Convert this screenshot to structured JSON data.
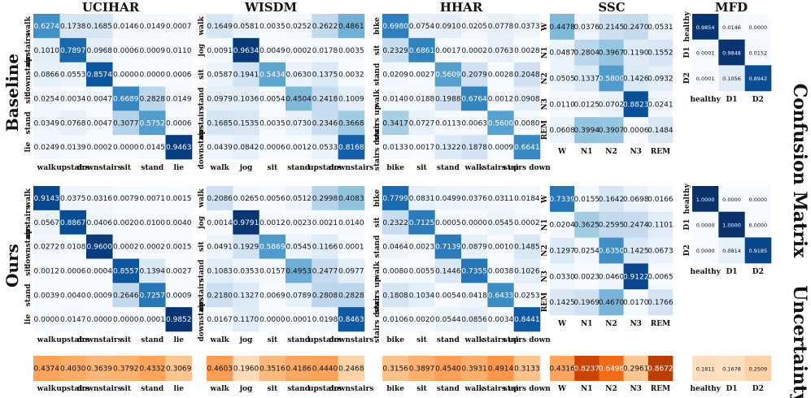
{
  "chart_data": [
    {
      "type": "heatmap",
      "title": "UCIHAR",
      "row_group": "Baseline",
      "labels": [
        "walk",
        "upstairs",
        "downstairs",
        "sit",
        "stand",
        "lie"
      ],
      "values": [
        [
          0.6274,
          0.1738,
          0.1685,
          0.0146,
          0.0149,
          0.0007
        ],
        [
          0.101,
          0.7897,
          0.0968,
          0.0006,
          0.0009,
          0.011
        ],
        [
          0.0866,
          0.0553,
          0.8574,
          0.0,
          0.0,
          0.0006
        ],
        [
          0.0254,
          0.0034,
          0.0047,
          0.6689,
          0.2828,
          0.0149
        ],
        [
          0.0349,
          0.0768,
          0.0047,
          0.3077,
          0.5752,
          0.0006
        ],
        [
          0.0249,
          0.0139,
          0.0002,
          0.0,
          0.0145,
          0.9463
        ]
      ],
      "display_values": [
        [
          "0.6274",
          "0.1738",
          "0.1685",
          "0.0146",
          "0.0149",
          "0.0007"
        ],
        [
          "0.1010",
          "0.7897",
          "0.0968",
          "0.0006",
          "0.0009",
          "0.0110"
        ],
        [
          "0.0866",
          "0.0553",
          "0.8574",
          "0.0000",
          "0.0000",
          "0.0006"
        ],
        [
          "0.0254",
          "0.0034",
          "0.0047",
          "0.6689",
          "0.2828",
          "0.0149"
        ],
        [
          "0.0349",
          "0.0768",
          "0.0047",
          "0.3077",
          "0.5752",
          "0.0006"
        ],
        [
          "0.0249",
          "0.0139",
          "0.0002",
          "0.0000",
          "0.0145",
          "0.9463"
        ]
      ]
    },
    {
      "type": "heatmap",
      "title": "WISDM",
      "row_group": "Baseline",
      "labels": [
        "walk",
        "jog",
        "sit",
        "stand",
        "upstairs",
        "downstairs"
      ],
      "values": [
        [
          0.1649,
          0.0581,
          0.0035,
          0.0252,
          0.2622,
          0.4861
        ],
        [
          0.0091,
          0.9634,
          0.0049,
          0.0002,
          0.0178,
          0.0035
        ],
        [
          0.0587,
          0.1941,
          0.5434,
          0.063,
          0.1375,
          0.0032
        ],
        [
          0.0979,
          0.1036,
          0.0054,
          0.4504,
          0.2418,
          0.1009
        ],
        [
          0.1685,
          0.1535,
          0.0035,
          0.073,
          0.2346,
          0.3668
        ],
        [
          0.0439,
          0.0842,
          0.0006,
          0.0012,
          0.0533,
          0.8168
        ]
      ],
      "display_values": [
        [
          "0.1649",
          "0.0581",
          "0.0035",
          "0.0252",
          "0.2622",
          "0.4861"
        ],
        [
          "0.0091",
          "0.9634",
          "0.0049",
          "0.0002",
          "0.0178",
          "0.0035"
        ],
        [
          "0.0587",
          "0.1941",
          "0.5434",
          "0.0630",
          "0.1375",
          "0.0032"
        ],
        [
          "0.0979",
          "0.1036",
          "0.0054",
          "0.4504",
          "0.2418",
          "0.1009"
        ],
        [
          "0.1685",
          "0.1535",
          "0.0035",
          "0.0730",
          "0.2346",
          "0.3668"
        ],
        [
          "0.0439",
          "0.0842",
          "0.0006",
          "0.0012",
          "0.0533",
          "0.8168"
        ]
      ]
    },
    {
      "type": "heatmap",
      "title": "HHAR",
      "row_group": "Baseline",
      "labels": [
        "bike",
        "sit",
        "stand",
        "walk",
        "stairs up",
        "stairs down"
      ],
      "values": [
        [
          0.698,
          0.0754,
          0.091,
          0.0205,
          0.0778,
          0.0373
        ],
        [
          0.2329,
          0.6861,
          0.0017,
          0.0002,
          0.0763,
          0.0028
        ],
        [
          0.0209,
          0.0027,
          0.5609,
          0.2079,
          0.0028,
          0.2048
        ],
        [
          0.014,
          0.0188,
          0.1988,
          0.6764,
          0.0012,
          0.0908
        ],
        [
          0.3417,
          0.0727,
          0.0113,
          0.0063,
          0.56,
          0.008
        ],
        [
          0.0133,
          0.0017,
          0.1322,
          0.1878,
          0.0009,
          0.6641
        ]
      ],
      "display_values": [
        [
          "0.6980",
          "0.0754",
          "0.0910",
          "0.0205",
          "0.0778",
          "0.0373"
        ],
        [
          "0.2329",
          "0.6861",
          "0.0017",
          "0.0002",
          "0.0763",
          "0.0028"
        ],
        [
          "0.0209",
          "0.0027",
          "0.5609",
          "0.2079",
          "0.0028",
          "0.2048"
        ],
        [
          "0.0140",
          "0.0188",
          "0.1988",
          "0.6764",
          "0.0012",
          "0.0908"
        ],
        [
          "0.3417",
          "0.0727",
          "0.0113",
          "0.0063",
          "0.5600",
          "0.0080"
        ],
        [
          "0.0133",
          "0.0017",
          "0.1322",
          "0.1878",
          "0.0009",
          "0.6641"
        ]
      ]
    },
    {
      "type": "heatmap",
      "title": "SSC",
      "row_group": "Baseline",
      "labels": [
        "W",
        "N1",
        "N2",
        "N3",
        "REM"
      ],
      "values": [
        [
          0.4478,
          0.0376,
          0.2145,
          0.247,
          0.0531
        ],
        [
          0.0487,
          0.2804,
          0.3967,
          0.119,
          0.1552
        ],
        [
          0.0505,
          0.1337,
          0.58,
          0.1426,
          0.0932
        ],
        [
          0.011,
          0.0125,
          0.0702,
          0.8823,
          0.0241
        ],
        [
          0.0608,
          0.3994,
          0.3907,
          0.0006,
          0.1484
        ]
      ],
      "display_values": [
        [
          "0.4478",
          "0.0376",
          "0.2145",
          "0.2470",
          "0.0531"
        ],
        [
          "0.0487",
          "0.2804",
          "0.3967",
          "0.1190",
          "0.1552"
        ],
        [
          "0.0505",
          "0.1337",
          "0.5800",
          "0.1426",
          "0.0932"
        ],
        [
          "0.0110",
          "0.0125",
          "0.0702",
          "0.8823",
          "0.0241"
        ],
        [
          "0.0608",
          "0.3994",
          "0.3907",
          "0.0006",
          "0.1484"
        ]
      ]
    },
    {
      "type": "heatmap",
      "title": "MFD",
      "row_group": "Baseline",
      "labels": [
        "healthy",
        "D1",
        "D2"
      ],
      "values": [
        [
          0.9854,
          0.0146,
          0.0
        ],
        [
          0.0001,
          0.9848,
          0.0152
        ],
        [
          0.0001,
          0.1056,
          0.8942
        ]
      ],
      "display_values": [
        [
          "0.9854",
          "0.0146",
          "0.0000"
        ],
        [
          "0.0001",
          "0.9848",
          "0.0152"
        ],
        [
          "0.0001",
          "0.1056",
          "0.8942"
        ]
      ]
    },
    {
      "type": "heatmap",
      "title": "UCIHAR",
      "row_group": "Ours",
      "labels": [
        "walk",
        "upstairs",
        "downstairs",
        "sit",
        "stand",
        "lie"
      ],
      "values": [
        [
          0.9143,
          0.0375,
          0.0316,
          0.0079,
          0.0071,
          0.0015
        ],
        [
          0.0567,
          0.8867,
          0.0406,
          0.002,
          0.01,
          0.004
        ],
        [
          0.0272,
          0.0108,
          0.96,
          0.0002,
          0.0002,
          0.0015
        ],
        [
          0.0012,
          0.0006,
          0.0004,
          0.8557,
          0.1394,
          0.0027
        ],
        [
          0.0039,
          0.004,
          0.0009,
          0.2646,
          0.7257,
          0.0009
        ],
        [
          0.0,
          0.0147,
          0.0,
          0.0,
          0.0001,
          0.9852
        ]
      ],
      "display_values": [
        [
          "0.9143",
          "0.0375",
          "0.0316",
          "0.0079",
          "0.0071",
          "0.0015"
        ],
        [
          "0.0567",
          "0.8867",
          "0.0406",
          "0.0020",
          "0.0100",
          "0.0040"
        ],
        [
          "0.0272",
          "0.0108",
          "0.9600",
          "0.0002",
          "0.0002",
          "0.0015"
        ],
        [
          "0.0012",
          "0.0006",
          "0.0004",
          "0.8557",
          "0.1394",
          "0.0027"
        ],
        [
          "0.0039",
          "0.0040",
          "0.0009",
          "0.2646",
          "0.7257",
          "0.0009"
        ],
        [
          "0.0000",
          "0.0147",
          "0.0000",
          "0.0000",
          "0.0001",
          "0.9852"
        ]
      ]
    },
    {
      "type": "heatmap",
      "title": "WISDM",
      "row_group": "Ours",
      "labels": [
        "walk",
        "jog",
        "sit",
        "stand",
        "upstairs",
        "downstairs"
      ],
      "values": [
        [
          0.2086,
          0.0265,
          0.0056,
          0.0512,
          0.2998,
          0.4083
        ],
        [
          0.0014,
          0.9791,
          0.0012,
          0.0023,
          0.0021,
          0.014
        ],
        [
          0.0491,
          0.1929,
          0.5869,
          0.0545,
          0.1166,
          0.0001
        ],
        [
          0.1083,
          0.0353,
          0.0157,
          0.4953,
          0.2477,
          0.0977
        ],
        [
          0.218,
          0.1327,
          0.0069,
          0.0789,
          0.2808,
          0.2828
        ],
        [
          0.0167,
          0.117,
          0.0,
          0.0001,
          0.0198,
          0.8463
        ]
      ],
      "display_values": [
        [
          "0.2086",
          "0.0265",
          "0.0056",
          "0.0512",
          "0.2998",
          "0.4083"
        ],
        [
          "0.0014",
          "0.9791",
          "0.0012",
          "0.0023",
          "0.0021",
          "0.0140"
        ],
        [
          "0.0491",
          "0.1929",
          "0.5869",
          "0.0545",
          "0.1166",
          "0.0001"
        ],
        [
          "0.1083",
          "0.0353",
          "0.0157",
          "0.4953",
          "0.2477",
          "0.0977"
        ],
        [
          "0.2180",
          "0.1327",
          "0.0069",
          "0.0789",
          "0.2808",
          "0.2828"
        ],
        [
          "0.0167",
          "0.1170",
          "0.0000",
          "0.0001",
          "0.0198",
          "0.8463"
        ]
      ]
    },
    {
      "type": "heatmap",
      "title": "HHAR",
      "row_group": "Ours",
      "labels": [
        "bike",
        "sit",
        "stand",
        "walk",
        "stairs up",
        "stairs down"
      ],
      "values": [
        [
          0.7799,
          0.0831,
          0.0499,
          0.0376,
          0.0311,
          0.0184
        ],
        [
          0.2322,
          0.7125,
          0.0005,
          0.0,
          0.0545,
          0.0002
        ],
        [
          0.0464,
          0.0023,
          0.7139,
          0.0879,
          0.001,
          0.1485
        ],
        [
          0.008,
          0.0055,
          0.1446,
          0.7355,
          0.0038,
          0.1026
        ],
        [
          0.1808,
          0.1034,
          0.0054,
          0.0418,
          0.6433,
          0.0253
        ],
        [
          0.0106,
          0.002,
          0.0544,
          0.0856,
          0.0034,
          0.8441
        ]
      ],
      "display_values": [
        [
          "0.7799",
          "0.0831",
          "0.0499",
          "0.0376",
          "0.0311",
          "0.0184"
        ],
        [
          "0.2322",
          "0.7125",
          "0.0005",
          "0.0000",
          "0.0545",
          "0.0002"
        ],
        [
          "0.0464",
          "0.0023",
          "0.7139",
          "0.0879",
          "0.0010",
          "0.1485"
        ],
        [
          "0.0080",
          "0.0055",
          "0.1446",
          "0.7355",
          "0.0038",
          "0.1026"
        ],
        [
          "0.1808",
          "0.1034",
          "0.0054",
          "0.0418",
          "0.6433",
          "0.0253"
        ],
        [
          "0.0106",
          "0.0020",
          "0.0544",
          "0.0856",
          "0.0034",
          "0.8441"
        ]
      ]
    },
    {
      "type": "heatmap",
      "title": "SSC",
      "row_group": "Ours",
      "labels": [
        "W",
        "N1",
        "N2",
        "N3",
        "REM"
      ],
      "values": [
        [
          0.7339,
          0.0155,
          0.1642,
          0.0698,
          0.0166
        ],
        [
          0.0204,
          0.3625,
          0.2595,
          0.2474,
          0.1101
        ],
        [
          0.1297,
          0.0254,
          0.635,
          0.1425,
          0.0673
        ],
        [
          0.033,
          0.0023,
          0.046,
          0.9122,
          0.0065
        ],
        [
          0.1425,
          0.1969,
          0.467,
          0.017,
          0.1766
        ]
      ],
      "display_values": [
        [
          "0.7339",
          "0.0155",
          "0.1642",
          "0.0698",
          "0.0166"
        ],
        [
          "0.0204",
          "0.3625",
          "0.2595",
          "0.2474",
          "0.1101"
        ],
        [
          "0.1297",
          "0.0254",
          "0.6350",
          "0.1425",
          "0.0673"
        ],
        [
          "0.0330",
          "0.0023",
          "0.0460",
          "0.9122",
          "0.0065"
        ],
        [
          "0.1425",
          "0.1969",
          "0.4670",
          "0.0170",
          "0.1766"
        ]
      ]
    },
    {
      "type": "heatmap",
      "title": "MFD",
      "row_group": "Ours",
      "labels": [
        "healthy",
        "D1",
        "D2"
      ],
      "values": [
        [
          1.0,
          0.0,
          0.0
        ],
        [
          0.0,
          1.0,
          0.0
        ],
        [
          0.0,
          0.0814,
          0.9185
        ]
      ],
      "display_values": [
        [
          "1.0000",
          "0.0000",
          "0.0000"
        ],
        [
          "0.0000",
          "1.0000",
          "0.0000"
        ],
        [
          "0.0000",
          "0.0814",
          "0.9185"
        ]
      ]
    },
    {
      "type": "heatmap",
      "title": "Uncertainty",
      "row_group": "Ours",
      "panels": [
        {
          "dataset": "UCIHAR",
          "labels": [
            "walk",
            "upstairs",
            "downstairs",
            "sit",
            "stand",
            "lie"
          ],
          "values": [
            0.4374,
            0.403,
            0.3639,
            0.3792,
            0.4332,
            0.3069
          ],
          "display_values": [
            "0.4374",
            "0.4030",
            "0.3639",
            "0.3792",
            "0.4332",
            "0.3069"
          ]
        },
        {
          "dataset": "WISDM",
          "labels": [
            "walk",
            "jog",
            "sit",
            "stand",
            "upstairs",
            "downstairs"
          ],
          "values": [
            0.4603,
            0.196,
            0.3516,
            0.4186,
            0.444,
            0.2468
          ],
          "display_values": [
            "0.4603",
            "0.1960",
            "0.3516",
            "0.4186",
            "0.4440",
            "0.2468"
          ]
        },
        {
          "dataset": "HHAR",
          "labels": [
            "bike",
            "sit",
            "stand",
            "walk",
            "stairs up",
            "stairs down"
          ],
          "values": [
            0.3156,
            0.3897,
            0.454,
            0.3931,
            0.4914,
            0.3133
          ],
          "display_values": [
            "0.3156",
            "0.3897",
            "0.4540",
            "0.3931",
            "0.4914",
            "0.3133"
          ]
        },
        {
          "dataset": "SSC",
          "labels": [
            "W",
            "N1",
            "N2",
            "N3",
            "REM"
          ],
          "values": [
            0.4316,
            0.8237,
            0.6498,
            0.2961,
            0.8672
          ],
          "display_values": [
            "0.4316",
            "0.8237",
            "0.6498",
            "0.2961",
            "0.8672"
          ]
        },
        {
          "dataset": "MFD",
          "labels": [
            "healthy",
            "D1",
            "D2"
          ],
          "values": [
            0.1811,
            0.1678,
            0.2509
          ],
          "display_values": [
            "0.1811",
            "0.1678",
            "0.2509"
          ]
        }
      ]
    }
  ],
  "labels": {
    "row_baseline": "Baseline",
    "row_ours": "Ours",
    "side_confusion": "Confusion Matrix",
    "side_uncertainty": "Uncertainty"
  },
  "colors": {
    "blue_low": "#f7fbff",
    "blue_high": "#08306b",
    "orange_low": "#fff5eb",
    "orange_high": "#a63603",
    "text_dark": "#111111",
    "text_light": "#ffffff"
  }
}
